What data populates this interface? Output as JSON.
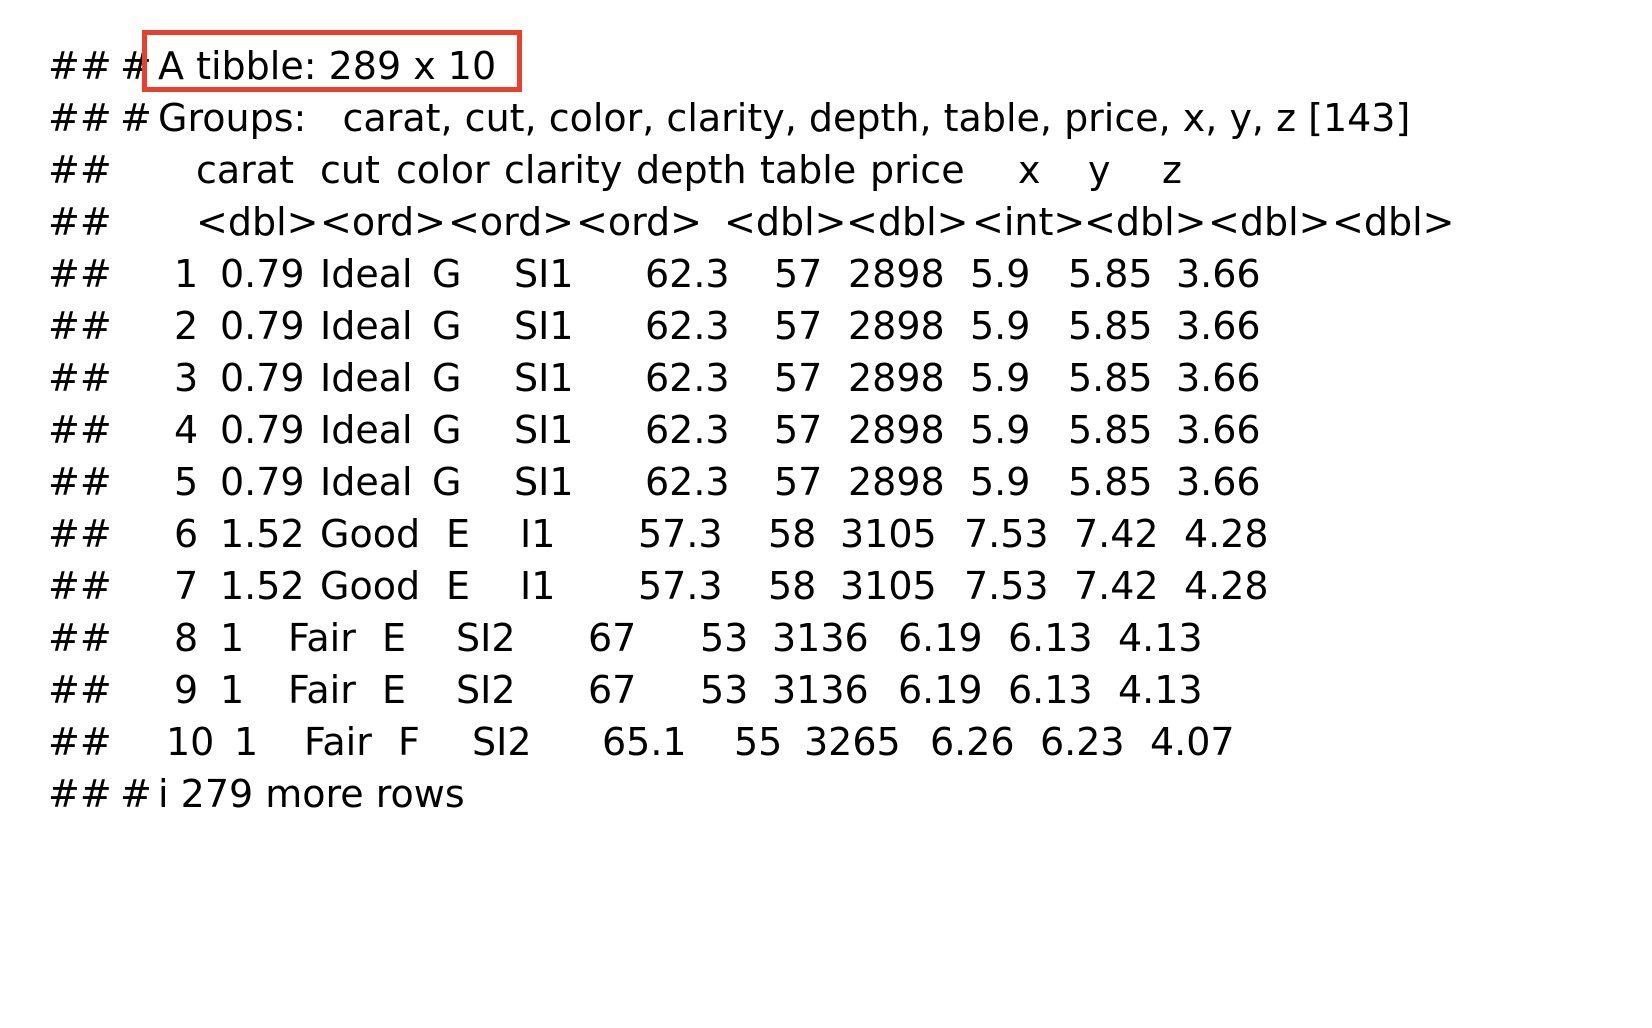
{
  "highlight_color": "#e8402a",
  "prefix": "##",
  "tibble_line": {
    "marker": "#",
    "text": "A tibble: 289 x 10"
  },
  "groups_line": {
    "marker": "#",
    "text": "Groups:   carat, cut, color, clarity, depth, table, price, x, y, z [143]"
  },
  "columns": [
    "carat",
    "cut",
    "color",
    "clarity",
    "depth",
    "table",
    "price",
    "x",
    "y",
    "z"
  ],
  "types": [
    "<dbl>",
    "<ord>",
    "<ord>",
    "<ord>",
    "<dbl>",
    "<dbl>",
    "<int>",
    "<dbl>",
    "<dbl>",
    "<dbl>"
  ],
  "rows": [
    {
      "idx": "1",
      "cells": [
        "0.79",
        "Ideal",
        "G",
        "SI1",
        "62.3",
        "57",
        "2898",
        "5.9",
        "5.85",
        "3.66"
      ]
    },
    {
      "idx": "2",
      "cells": [
        "0.79",
        "Ideal",
        "G",
        "SI1",
        "62.3",
        "57",
        "2898",
        "5.9",
        "5.85",
        "3.66"
      ]
    },
    {
      "idx": "3",
      "cells": [
        "0.79",
        "Ideal",
        "G",
        "SI1",
        "62.3",
        "57",
        "2898",
        "5.9",
        "5.85",
        "3.66"
      ]
    },
    {
      "idx": "4",
      "cells": [
        "0.79",
        "Ideal",
        "G",
        "SI1",
        "62.3",
        "57",
        "2898",
        "5.9",
        "5.85",
        "3.66"
      ]
    },
    {
      "idx": "5",
      "cells": [
        "0.79",
        "Ideal",
        "G",
        "SI1",
        "62.3",
        "57",
        "2898",
        "5.9",
        "5.85",
        "3.66"
      ]
    },
    {
      "idx": "6",
      "cells": [
        "1.52",
        "Good",
        "E",
        "I1",
        "57.3",
        "58",
        "3105",
        "7.53",
        "7.42",
        "4.28"
      ]
    },
    {
      "idx": "7",
      "cells": [
        "1.52",
        "Good",
        "E",
        "I1",
        "57.3",
        "58",
        "3105",
        "7.53",
        "7.42",
        "4.28"
      ]
    },
    {
      "idx": "8",
      "cells": [
        "1",
        "Fair",
        "E",
        "SI2",
        "67",
        "53",
        "3136",
        "6.19",
        "6.13",
        "4.13"
      ]
    },
    {
      "idx": "9",
      "cells": [
        "1",
        "Fair",
        "E",
        "SI2",
        "67",
        "53",
        "3136",
        "6.19",
        "6.13",
        "4.13"
      ]
    },
    {
      "idx": "10",
      "cells": [
        "1",
        "Fair",
        "F",
        "SI2",
        "65.1",
        "55",
        "3265",
        "6.26",
        "6.23",
        "4.07"
      ]
    }
  ],
  "footer_line": {
    "marker": "#",
    "text": "i 279 more rows"
  }
}
